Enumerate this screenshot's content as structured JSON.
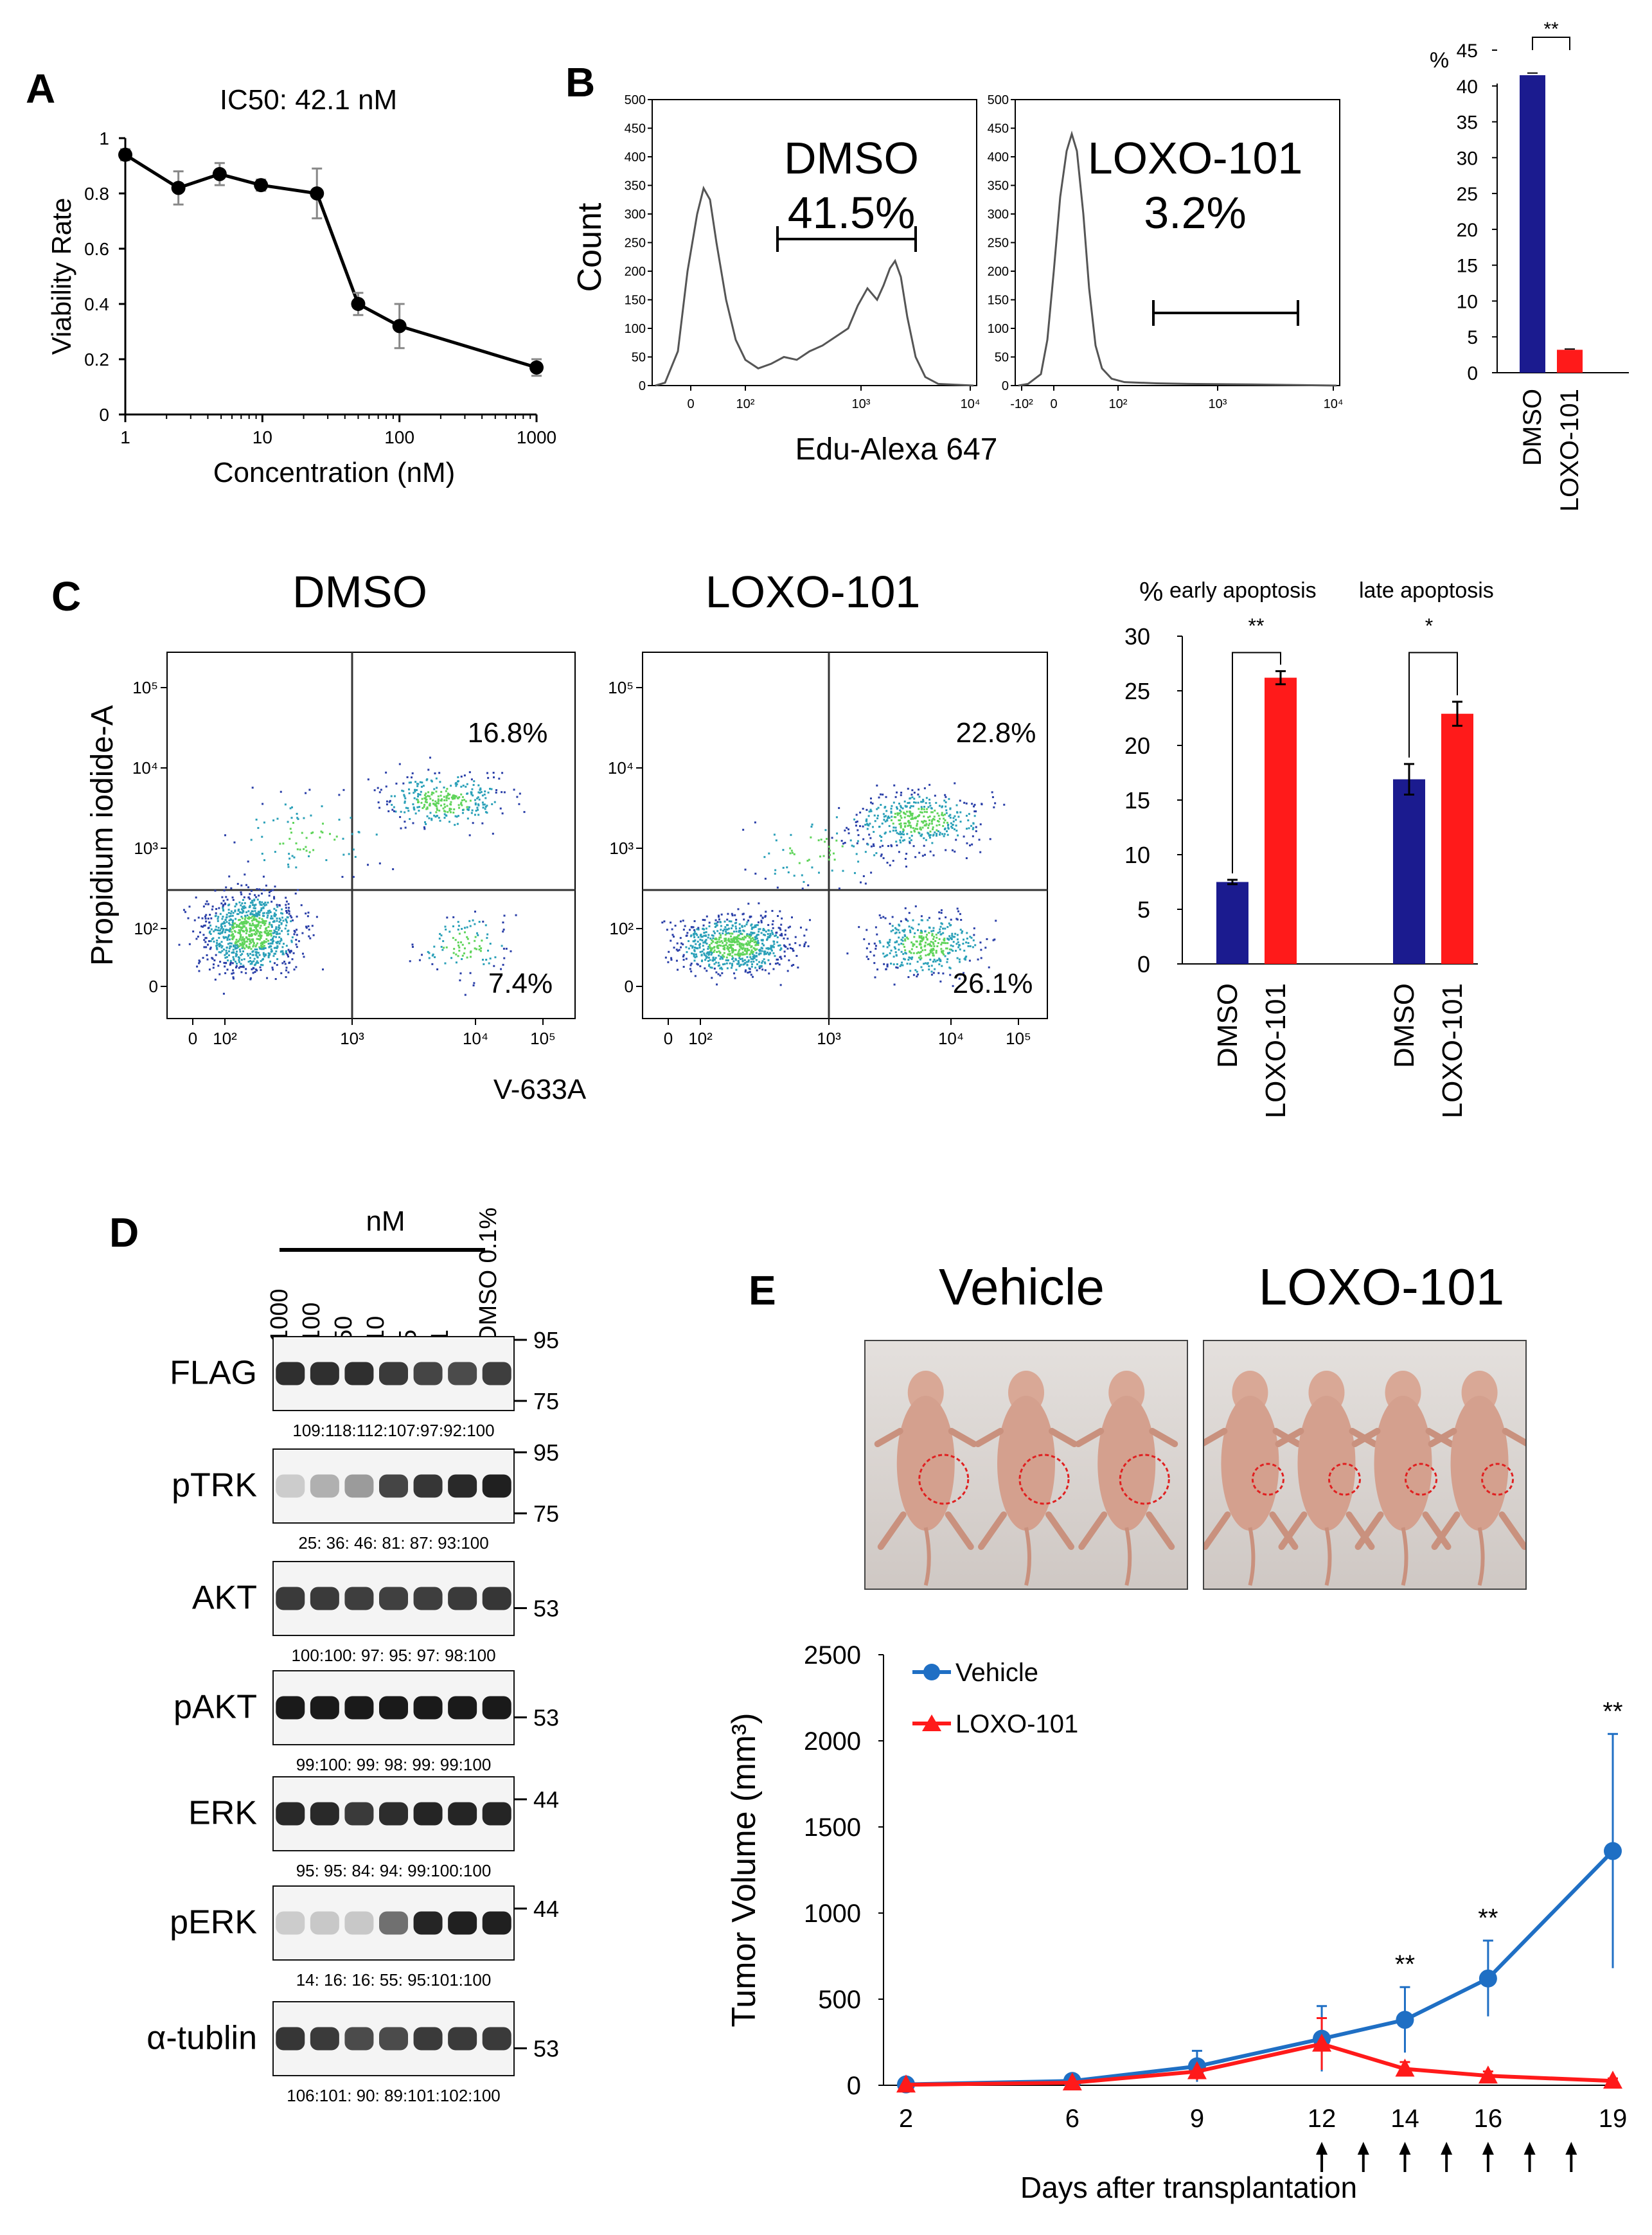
{
  "panel_labels": [
    "A",
    "B",
    "C",
    "D",
    "E"
  ],
  "colors": {
    "dmso": "#1b1b8f",
    "loxo": "#ff1a1a",
    "vehicle": "#1f6fc4",
    "blot": "#1a1a1a"
  },
  "chart_data": [
    {
      "id": "A",
      "type": "line",
      "title": "IC50: 42.1 nM",
      "xlabel": "Concentration (nM)",
      "ylabel": "Viability Rate",
      "xscale": "log",
      "xlim": [
        1,
        1000
      ],
      "ylim": [
        0,
        1
      ],
      "xticks": [
        "1",
        "10",
        "100",
        "1000"
      ],
      "yticks": [
        "0",
        "0.2",
        "0.4",
        "0.6",
        "0.8",
        "1"
      ],
      "x": [
        1,
        2.44,
        4.88,
        9.77,
        25,
        50,
        100,
        1000
      ],
      "y": [
        0.94,
        0.82,
        0.87,
        0.83,
        0.8,
        0.4,
        0.32,
        0.17
      ],
      "err": [
        0.02,
        0.06,
        0.04,
        0.02,
        0.09,
        0.04,
        0.08,
        0.03
      ]
    },
    {
      "id": "B-hist",
      "type": "histogram",
      "xlabel": "Edu-Alexa 647",
      "ylabel": "Count",
      "ylim": [
        0,
        500
      ],
      "yticks": [
        "0",
        "50",
        "100",
        "150",
        "200",
        "250",
        "300",
        "350",
        "400",
        "450",
        "500"
      ],
      "panels": [
        {
          "name": "DMSO",
          "pct": "41.5%",
          "xticks": [
            "0",
            "10²",
            "10³",
            "10⁴"
          ]
        },
        {
          "name": "LOXO-101",
          "pct": "3.2%",
          "xticks": [
            "-10²",
            "0",
            "10²",
            "10³",
            "10⁴"
          ]
        }
      ]
    },
    {
      "id": "B-bar",
      "type": "bar",
      "ylabel": "%",
      "ylim": [
        0,
        45
      ],
      "yticks": [
        "0",
        "5",
        "10",
        "15",
        "20",
        "25",
        "30",
        "35",
        "40",
        "45"
      ],
      "categories": [
        "DMSO",
        "LOXO-101"
      ],
      "values": [
        41.5,
        3.2
      ],
      "err": [
        0.3,
        0.1
      ],
      "significance": "**"
    },
    {
      "id": "C-scatter",
      "type": "scatter",
      "xlabel": "V-633A",
      "ylabel": "Propidium iodide-A",
      "xticks": [
        "0",
        "10²",
        "10³",
        "10⁴",
        "10⁵"
      ],
      "yticks": [
        "0",
        "10²",
        "10³",
        "10⁴",
        "10⁵"
      ],
      "panels": [
        {
          "name": "DMSO",
          "upper_right": "16.8%",
          "lower_right": "7.4%"
        },
        {
          "name": "LOXO-101",
          "upper_right": "22.8%",
          "lower_right": "26.1%"
        }
      ]
    },
    {
      "id": "C-bar",
      "type": "bar",
      "ylabel": "%",
      "ylim": [
        0,
        30
      ],
      "yticks": [
        "0",
        "5",
        "10",
        "15",
        "20",
        "25",
        "30"
      ],
      "groups": [
        {
          "name": "early apoptosis",
          "categories": [
            "DMSO",
            "LOXO-101"
          ],
          "values": [
            7.5,
            26.2
          ],
          "err": [
            0.2,
            0.6
          ],
          "significance": "**"
        },
        {
          "name": "late apoptosis",
          "categories": [
            "DMSO",
            "LOXO-101"
          ],
          "values": [
            16.9,
            22.9
          ],
          "err": [
            1.4,
            1.1
          ],
          "significance": "*"
        }
      ]
    },
    {
      "id": "E-line",
      "type": "line",
      "xlabel": "Days after transplantation",
      "ylabel": "Tumor Volume (mm³)",
      "ylim": [
        0,
        2500
      ],
      "yticks": [
        "0",
        "500",
        "1000",
        "1500",
        "2000",
        "2500"
      ],
      "x": [
        2,
        6,
        9,
        12,
        14,
        16,
        19
      ],
      "xticks": [
        "2",
        "6",
        "9",
        "12",
        "14",
        "16",
        "19"
      ],
      "series": [
        {
          "name": "Vehicle",
          "values": [
            5,
            25,
            110,
            270,
            380,
            620,
            1360
          ],
          "err": [
            5,
            10,
            90,
            190,
            190,
            220,
            680
          ]
        },
        {
          "name": "LOXO-101",
          "values": [
            3,
            15,
            80,
            240,
            95,
            55,
            25
          ],
          "err": [
            3,
            10,
            50,
            150,
            40,
            25,
            15
          ]
        }
      ],
      "significance": [
        {
          "day": 14,
          "mark": "**"
        },
        {
          "day": 16,
          "mark": "**"
        },
        {
          "day": 19,
          "mark": "**"
        }
      ],
      "dosing_days": [
        12,
        13,
        14,
        15,
        16,
        17,
        18
      ]
    }
  ],
  "blot": {
    "header": "nM",
    "lanes": [
      "1000",
      "100",
      "50",
      "10",
      "5",
      "1",
      "DMSO 0.1%"
    ],
    "rows": [
      {
        "label": "FLAG",
        "markers": [
          "95",
          "75"
        ],
        "quant": "109:118:112:107:97:92:100",
        "intensity": [
          0.85,
          0.85,
          0.85,
          0.8,
          0.75,
          0.72,
          0.78
        ]
      },
      {
        "label": "pTRK",
        "markers": [
          "95",
          "75"
        ],
        "quant": "25: 36: 46: 81: 87: 93:100",
        "intensity": [
          0.12,
          0.25,
          0.35,
          0.75,
          0.82,
          0.88,
          0.92
        ]
      },
      {
        "label": "AKT",
        "markers": [
          "53"
        ],
        "quant": "100:100: 97: 95: 97: 98:100",
        "intensity": [
          0.8,
          0.8,
          0.78,
          0.77,
          0.78,
          0.8,
          0.82
        ]
      },
      {
        "label": "pAKT",
        "markers": [
          "53"
        ],
        "quant": "99:100: 99: 98: 99: 99:100",
        "intensity": [
          0.95,
          0.95,
          0.95,
          0.95,
          0.95,
          0.95,
          0.95
        ]
      },
      {
        "label": "ERK",
        "markers": [
          "44"
        ],
        "quant": "95: 95: 84: 94: 99:100:100",
        "intensity": [
          0.88,
          0.88,
          0.8,
          0.86,
          0.9,
          0.9,
          0.9
        ]
      },
      {
        "label": "pERK",
        "markers": [
          "44"
        ],
        "quant": "14: 16: 16: 55: 95:101:100",
        "intensity": [
          0.12,
          0.14,
          0.14,
          0.55,
          0.9,
          0.92,
          0.92
        ]
      },
      {
        "label": "α-tublin",
        "markers": [
          "53"
        ],
        "quant": "106:101: 90: 89:101:102:100",
        "intensity": [
          0.82,
          0.8,
          0.72,
          0.72,
          0.8,
          0.8,
          0.8
        ]
      }
    ]
  },
  "photo_labels": [
    "Vehicle",
    "LOXO-101"
  ]
}
